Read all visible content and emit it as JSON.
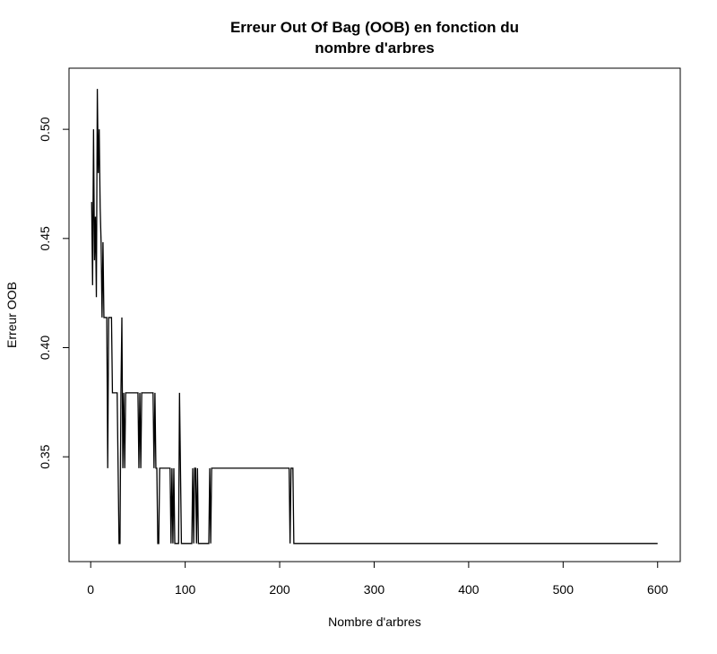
{
  "chart_data": {
    "type": "line",
    "title": [
      "Erreur Out Of Bag (OOB) en fonction du",
      "nombre d'arbres"
    ],
    "x_label": "Nombre d'arbres",
    "y_label": "Erreur OOB",
    "color": "#000000",
    "x": [
      1,
      2,
      3,
      4,
      5,
      6,
      7,
      8,
      9,
      10,
      11,
      12,
      13,
      14,
      17,
      18,
      19,
      22,
      23,
      28,
      29,
      30,
      31,
      32,
      33,
      34,
      35,
      36,
      37,
      50,
      51,
      52,
      53,
      54,
      66,
      67,
      68,
      69,
      70,
      71,
      72,
      73,
      84,
      85,
      86,
      87,
      88,
      89,
      93,
      94,
      95,
      96,
      107,
      108,
      109,
      110,
      111,
      112,
      113,
      114,
      125,
      126,
      127,
      128,
      210,
      211,
      212,
      214,
      215,
      600
    ],
    "values": [
      0.4667,
      0.4286,
      0.5,
      0.44,
      0.46,
      0.4231,
      0.5185,
      0.48,
      0.5,
      0.4643,
      0.4483,
      0.4138,
      0.4483,
      0.4138,
      0.4138,
      0.3448,
      0.4138,
      0.4138,
      0.3793,
      0.3793,
      0.3448,
      0.3103,
      0.3103,
      0.3793,
      0.4138,
      0.3448,
      0.3793,
      0.3448,
      0.3793,
      0.3793,
      0.3448,
      0.3793,
      0.3448,
      0.3793,
      0.3793,
      0.3448,
      0.3793,
      0.3448,
      0.3448,
      0.3103,
      0.3103,
      0.3448,
      0.3448,
      0.3103,
      0.3448,
      0.3103,
      0.3448,
      0.3103,
      0.3103,
      0.3793,
      0.3448,
      0.3103,
      0.3103,
      0.3448,
      0.3103,
      0.3448,
      0.3448,
      0.3103,
      0.3448,
      0.3103,
      0.3103,
      0.3448,
      0.3103,
      0.3448,
      0.3448,
      0.3103,
      0.3448,
      0.3448,
      0.3103,
      0.3103
    ],
    "xlim": [
      -22.96,
      623.96
    ],
    "ylim": [
      0.302,
      0.528
    ],
    "xticks": [
      0,
      100,
      200,
      300,
      400,
      500,
      600
    ],
    "yticks": [
      0.35,
      {
        "value": 0.4,
        "label": "0.40"
      },
      0.45,
      {
        "value": 0.5,
        "label": "0.50"
      }
    ]
  }
}
